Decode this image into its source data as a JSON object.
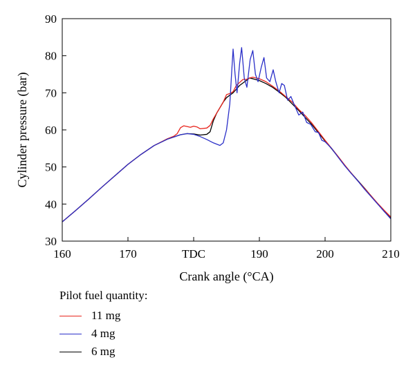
{
  "chart_data": {
    "type": "line",
    "xlabel": "Crank angle (°CA)",
    "ylabel": "Cylinder pressure (bar)",
    "xlim": [
      160,
      210
    ],
    "ylim": [
      30,
      90
    ],
    "x_ticks": [
      {
        "value": 160,
        "label": "160"
      },
      {
        "value": 170,
        "label": "170"
      },
      {
        "value": 180,
        "label": "TDC"
      },
      {
        "value": 190,
        "label": "190"
      },
      {
        "value": 200,
        "label": "200"
      },
      {
        "value": 210,
        "label": "210"
      }
    ],
    "y_ticks": [
      {
        "value": 30,
        "label": "30"
      },
      {
        "value": 40,
        "label": "40"
      },
      {
        "value": 50,
        "label": "50"
      },
      {
        "value": 60,
        "label": "60"
      },
      {
        "value": 70,
        "label": "70"
      },
      {
        "value": 80,
        "label": "80"
      },
      {
        "value": 90,
        "label": "90"
      }
    ],
    "grid": false,
    "legend_title": "Pilot fuel quantity:",
    "legend_position": "below",
    "series": [
      {
        "name": "11 mg",
        "color": "#e8231b",
        "points": [
          [
            160,
            35.2
          ],
          [
            162,
            38.2
          ],
          [
            164,
            41.3
          ],
          [
            166,
            44.5
          ],
          [
            168,
            47.6
          ],
          [
            170,
            50.7
          ],
          [
            172,
            53.4
          ],
          [
            174,
            55.8
          ],
          [
            176,
            57.6
          ],
          [
            177,
            58.3
          ],
          [
            177.5,
            59.0
          ],
          [
            178,
            60.6
          ],
          [
            178.5,
            61.1
          ],
          [
            179,
            60.9
          ],
          [
            179.5,
            60.7
          ],
          [
            180,
            61.0
          ],
          [
            180.5,
            60.8
          ],
          [
            181,
            60.3
          ],
          [
            182,
            60.5
          ],
          [
            182.5,
            61.2
          ],
          [
            183,
            63.0
          ],
          [
            183.5,
            64.5
          ],
          [
            184,
            66.0
          ],
          [
            184.5,
            67.5
          ],
          [
            185,
            69.5
          ],
          [
            185.5,
            69.8
          ],
          [
            186,
            70.3
          ],
          [
            186.5,
            72.0
          ],
          [
            187,
            72.8
          ],
          [
            187.5,
            73.6
          ],
          [
            188,
            73.6
          ],
          [
            188.5,
            74.0
          ],
          [
            189,
            74.2
          ],
          [
            189.5,
            74.0
          ],
          [
            190,
            73.8
          ],
          [
            191,
            73.0
          ],
          [
            192,
            71.8
          ],
          [
            193,
            70.5
          ],
          [
            194,
            69.0
          ],
          [
            195,
            67.5
          ],
          [
            196,
            65.5
          ],
          [
            197,
            63.8
          ],
          [
            198,
            61.8
          ],
          [
            199,
            59.5
          ],
          [
            200,
            57.2
          ],
          [
            201,
            55.0
          ],
          [
            202,
            52.8
          ],
          [
            203,
            50.5
          ],
          [
            204,
            48.3
          ],
          [
            205,
            46.2
          ],
          [
            206,
            44.2
          ],
          [
            207,
            42.2
          ],
          [
            208,
            40.2
          ],
          [
            209,
            38.3
          ],
          [
            210,
            36.5
          ]
        ]
      },
      {
        "name": "4 mg",
        "color": "#2a2fc8",
        "points": [
          [
            160,
            35.2
          ],
          [
            162,
            38.2
          ],
          [
            164,
            41.3
          ],
          [
            166,
            44.5
          ],
          [
            168,
            47.6
          ],
          [
            170,
            50.7
          ],
          [
            172,
            53.4
          ],
          [
            174,
            55.8
          ],
          [
            176,
            57.5
          ],
          [
            178,
            58.7
          ],
          [
            179,
            59.0
          ],
          [
            180,
            58.8
          ],
          [
            181,
            58.2
          ],
          [
            182,
            57.4
          ],
          [
            183,
            56.5
          ],
          [
            184,
            55.8
          ],
          [
            184.5,
            56.5
          ],
          [
            185,
            60.0
          ],
          [
            185.5,
            67.0
          ],
          [
            185.8,
            76.0
          ],
          [
            186.0,
            81.8
          ],
          [
            186.3,
            75.0
          ],
          [
            186.6,
            70.0
          ],
          [
            187,
            78.0
          ],
          [
            187.3,
            82.2
          ],
          [
            187.7,
            74.0
          ],
          [
            188.1,
            71.5
          ],
          [
            188.6,
            79.0
          ],
          [
            189.0,
            81.4
          ],
          [
            189.4,
            75.0
          ],
          [
            189.8,
            73.0
          ],
          [
            190.3,
            77.0
          ],
          [
            190.7,
            79.5
          ],
          [
            191.1,
            74.0
          ],
          [
            191.6,
            73.0
          ],
          [
            192.1,
            76.2
          ],
          [
            192.5,
            73.0
          ],
          [
            193.0,
            70.0
          ],
          [
            193.4,
            72.5
          ],
          [
            193.8,
            72.0
          ],
          [
            194.3,
            68.0
          ],
          [
            194.8,
            69.0
          ],
          [
            195.3,
            66.8
          ],
          [
            196.0,
            64.0
          ],
          [
            196.6,
            64.8
          ],
          [
            197.2,
            62.0
          ],
          [
            197.8,
            61.5
          ],
          [
            198.5,
            59.5
          ],
          [
            199.0,
            59.3
          ],
          [
            199.5,
            57.2
          ],
          [
            200,
            56.8
          ],
          [
            201,
            55.0
          ],
          [
            202,
            52.6
          ],
          [
            203,
            50.3
          ],
          [
            204,
            48.2
          ],
          [
            205,
            46.2
          ],
          [
            206,
            44.0
          ],
          [
            207,
            42.0
          ],
          [
            208,
            40.0
          ],
          [
            209,
            38.0
          ],
          [
            210,
            36.0
          ]
        ]
      },
      {
        "name": "6 mg",
        "color": "#000000",
        "points": [
          [
            160,
            35.2
          ],
          [
            162,
            38.2
          ],
          [
            164,
            41.3
          ],
          [
            166,
            44.5
          ],
          [
            168,
            47.6
          ],
          [
            170,
            50.7
          ],
          [
            172,
            53.4
          ],
          [
            174,
            55.8
          ],
          [
            176,
            57.5
          ],
          [
            178,
            58.7
          ],
          [
            179,
            59.0
          ],
          [
            180,
            58.9
          ],
          [
            181,
            58.6
          ],
          [
            182,
            58.8
          ],
          [
            182.5,
            59.5
          ],
          [
            183,
            62.5
          ],
          [
            183.5,
            64.5
          ],
          [
            184,
            66.0
          ],
          [
            184.5,
            67.5
          ],
          [
            185,
            68.7
          ],
          [
            186,
            70.0
          ],
          [
            186.5,
            71.0
          ],
          [
            187,
            72.0
          ],
          [
            188,
            73.3
          ],
          [
            188.5,
            74.0
          ],
          [
            189,
            73.8
          ],
          [
            190,
            73.3
          ],
          [
            191,
            72.5
          ],
          [
            192,
            71.5
          ],
          [
            193,
            70.2
          ],
          [
            194,
            68.8
          ],
          [
            195,
            67.0
          ],
          [
            196,
            65.2
          ],
          [
            197,
            63.3
          ],
          [
            198,
            61.4
          ],
          [
            199,
            59.2
          ],
          [
            200,
            57.0
          ],
          [
            201,
            54.9
          ],
          [
            202,
            52.7
          ],
          [
            203,
            50.4
          ],
          [
            204,
            48.3
          ],
          [
            205,
            46.3
          ],
          [
            206,
            44.3
          ],
          [
            207,
            42.2
          ],
          [
            208,
            40.1
          ],
          [
            209,
            38.0
          ],
          [
            210,
            36.2
          ]
        ]
      }
    ]
  }
}
